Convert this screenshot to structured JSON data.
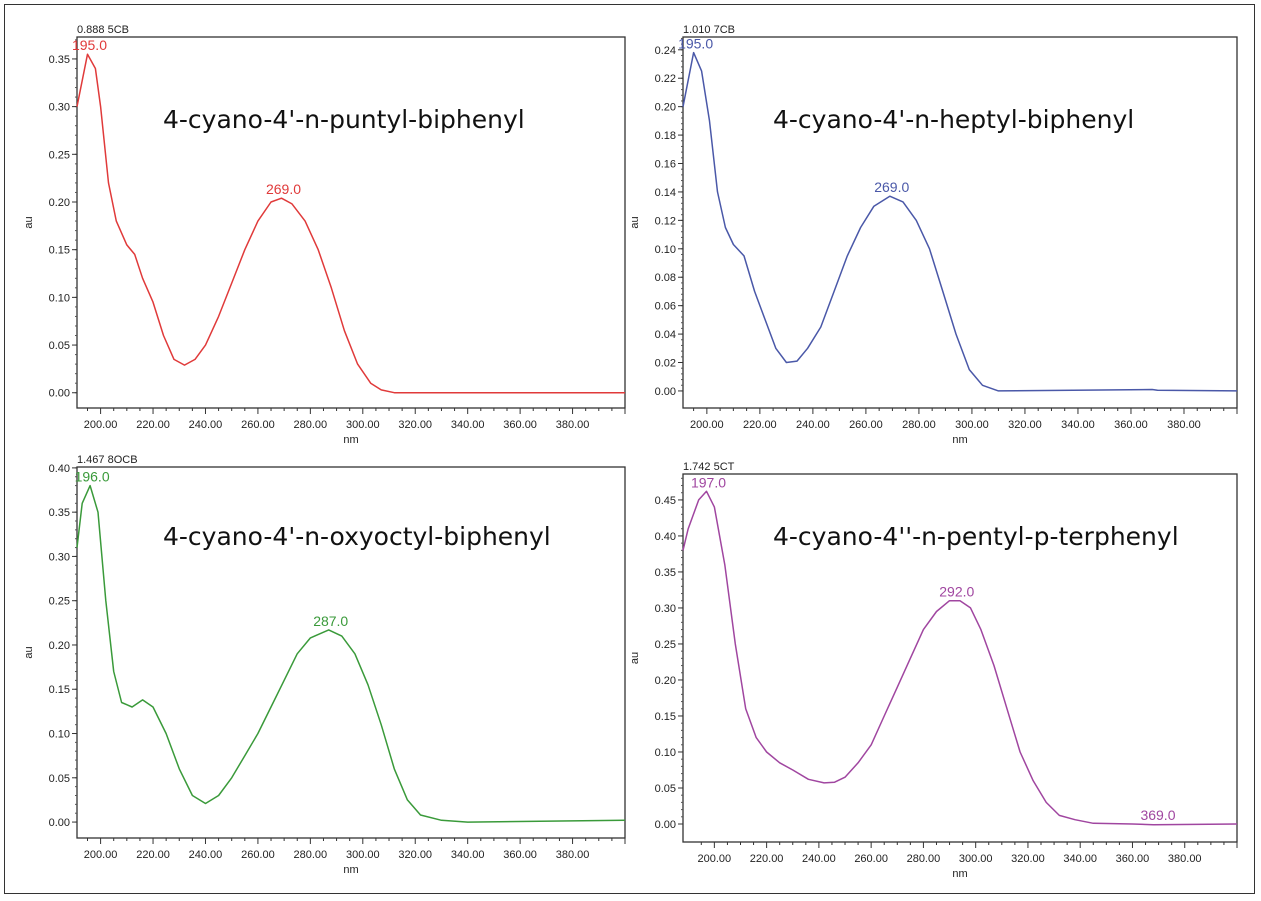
{
  "chart_data": [
    {
      "type": "line",
      "header": "0.888 5CB",
      "title": "4-cyano-4'-n-puntyl-biphenyl",
      "xlabel": "nm",
      "ylabel": "au",
      "xlim": [
        191,
        400
      ],
      "ylim": [
        -0.016,
        0.373
      ],
      "xticks": [
        "200.00",
        "220.00",
        "240.00",
        "260.00",
        "280.00",
        "300.00",
        "320.00",
        "340.00",
        "360.00",
        "380.00"
      ],
      "yticks": [
        "0.00",
        "0.05",
        "0.10",
        "0.15",
        "0.20",
        "0.25",
        "0.30",
        "0.35"
      ],
      "color": "#e03a3a",
      "peaks": [
        {
          "label": "195.0",
          "x": 195,
          "y": 0.355
        },
        {
          "label": "269.0",
          "x": 269,
          "y": 0.204
        }
      ],
      "x": [
        190,
        195,
        198,
        200,
        203,
        206,
        210,
        213,
        216,
        220,
        224,
        228,
        232,
        236,
        240,
        245,
        250,
        255,
        260,
        265,
        269,
        273,
        278,
        283,
        288,
        293,
        298,
        303,
        307,
        312,
        400
      ],
      "y": [
        0.3,
        0.355,
        0.34,
        0.3,
        0.22,
        0.18,
        0.155,
        0.145,
        0.12,
        0.095,
        0.06,
        0.035,
        0.029,
        0.035,
        0.05,
        0.08,
        0.115,
        0.15,
        0.18,
        0.2,
        0.204,
        0.198,
        0.18,
        0.15,
        0.11,
        0.065,
        0.03,
        0.01,
        0.003,
        0,
        0
      ]
    },
    {
      "type": "line",
      "header": "1.010 7CB",
      "title": "4-cyano-4'-n-heptyl-biphenyl",
      "xlabel": "nm",
      "ylabel": "au",
      "xlim": [
        191,
        400
      ],
      "ylim": [
        -0.012,
        0.249
      ],
      "xticks": [
        "200.00",
        "220.00",
        "240.00",
        "260.00",
        "280.00",
        "300.00",
        "320.00",
        "340.00",
        "360.00",
        "380.00"
      ],
      "yticks": [
        "0.00",
        "0.02",
        "0.04",
        "0.06",
        "0.08",
        "0.10",
        "0.12",
        "0.14",
        "0.16",
        "0.18",
        "0.20",
        "0.22",
        "0.24"
      ],
      "color": "#4a58a8",
      "peaks": [
        {
          "label": "195.0",
          "x": 195,
          "y": 0.238
        },
        {
          "label": "269.0",
          "x": 269,
          "y": 0.137
        }
      ],
      "x": [
        190,
        195,
        198,
        201,
        204,
        207,
        210,
        214,
        218,
        222,
        226,
        230,
        234,
        238,
        243,
        248,
        253,
        258,
        263,
        269,
        274,
        279,
        284,
        289,
        294,
        299,
        304,
        310,
        368,
        370,
        400
      ],
      "y": [
        0.2,
        0.238,
        0.225,
        0.19,
        0.14,
        0.115,
        0.103,
        0.095,
        0.07,
        0.05,
        0.03,
        0.02,
        0.021,
        0.03,
        0.045,
        0.07,
        0.095,
        0.115,
        0.13,
        0.137,
        0.133,
        0.12,
        0.1,
        0.07,
        0.04,
        0.015,
        0.004,
        0,
        0.001,
        0.0005,
        0
      ]
    },
    {
      "type": "line",
      "header": "1.467 8OCB",
      "title": "4-cyano-4'-n-oxyoctyl-biphenyl",
      "xlabel": "nm",
      "ylabel": "au",
      "xlim": [
        191,
        400
      ],
      "ylim": [
        -0.018,
        0.401
      ],
      "xticks": [
        "200.00",
        "220.00",
        "240.00",
        "260.00",
        "280.00",
        "300.00",
        "320.00",
        "340.00",
        "360.00",
        "380.00"
      ],
      "yticks": [
        "0.00",
        "0.05",
        "0.10",
        "0.15",
        "0.20",
        "0.25",
        "0.30",
        "0.35",
        "0.40"
      ],
      "color": "#3a9a3a",
      "peaks": [
        {
          "label": "196.0",
          "x": 196,
          "y": 0.38
        },
        {
          "label": "287.0",
          "x": 287,
          "y": 0.217
        }
      ],
      "x": [
        190,
        193,
        196,
        199,
        202,
        205,
        208,
        212,
        216,
        220,
        225,
        230,
        235,
        240,
        245,
        250,
        255,
        260,
        265,
        270,
        275,
        280,
        287,
        292,
        297,
        302,
        307,
        312,
        317,
        322,
        330,
        340,
        400
      ],
      "y": [
        0.31,
        0.36,
        0.38,
        0.35,
        0.25,
        0.17,
        0.135,
        0.13,
        0.138,
        0.13,
        0.1,
        0.06,
        0.03,
        0.021,
        0.03,
        0.05,
        0.075,
        0.1,
        0.13,
        0.16,
        0.19,
        0.208,
        0.217,
        0.21,
        0.19,
        0.155,
        0.11,
        0.06,
        0.025,
        0.008,
        0.002,
        0,
        0.002
      ]
    },
    {
      "type": "line",
      "header": "1.742 5CT",
      "title": "4-cyano-4''-n-pentyl-p-terphenyl",
      "xlabel": "nm",
      "ylabel": "au",
      "xlim": [
        188,
        400
      ],
      "ylim": [
        -0.025,
        0.486
      ],
      "xticks": [
        "200.00",
        "220.00",
        "240.00",
        "260.00",
        "280.00",
        "300.00",
        "320.00",
        "340.00",
        "360.00",
        "380.00"
      ],
      "yticks": [
        "0.00",
        "0.05",
        "0.10",
        "0.15",
        "0.20",
        "0.25",
        "0.30",
        "0.35",
        "0.40",
        "0.45"
      ],
      "color": "#a046a0",
      "peaks": [
        {
          "label": "197.0",
          "x": 197,
          "y": 0.462
        },
        {
          "label": "292.0",
          "x": 292,
          "y": 0.31
        },
        {
          "label": "369.0",
          "x": 369,
          "y": 0.0
        }
      ],
      "x": [
        188,
        190,
        194,
        197,
        200,
        204,
        208,
        212,
        216,
        220,
        225,
        230,
        236,
        242,
        246,
        250,
        255,
        260,
        265,
        270,
        275,
        280,
        285,
        290,
        294,
        298,
        302,
        307,
        312,
        317,
        322,
        327,
        332,
        338,
        345,
        360,
        368,
        400
      ],
      "y": [
        0.38,
        0.41,
        0.45,
        0.462,
        0.44,
        0.36,
        0.25,
        0.16,
        0.12,
        0.1,
        0.085,
        0.075,
        0.062,
        0.057,
        0.058,
        0.065,
        0.085,
        0.11,
        0.15,
        0.19,
        0.23,
        0.27,
        0.295,
        0.31,
        0.31,
        0.3,
        0.27,
        0.22,
        0.16,
        0.1,
        0.06,
        0.03,
        0.012,
        0.006,
        0.001,
        0,
        -0.001,
        0
      ]
    }
  ]
}
